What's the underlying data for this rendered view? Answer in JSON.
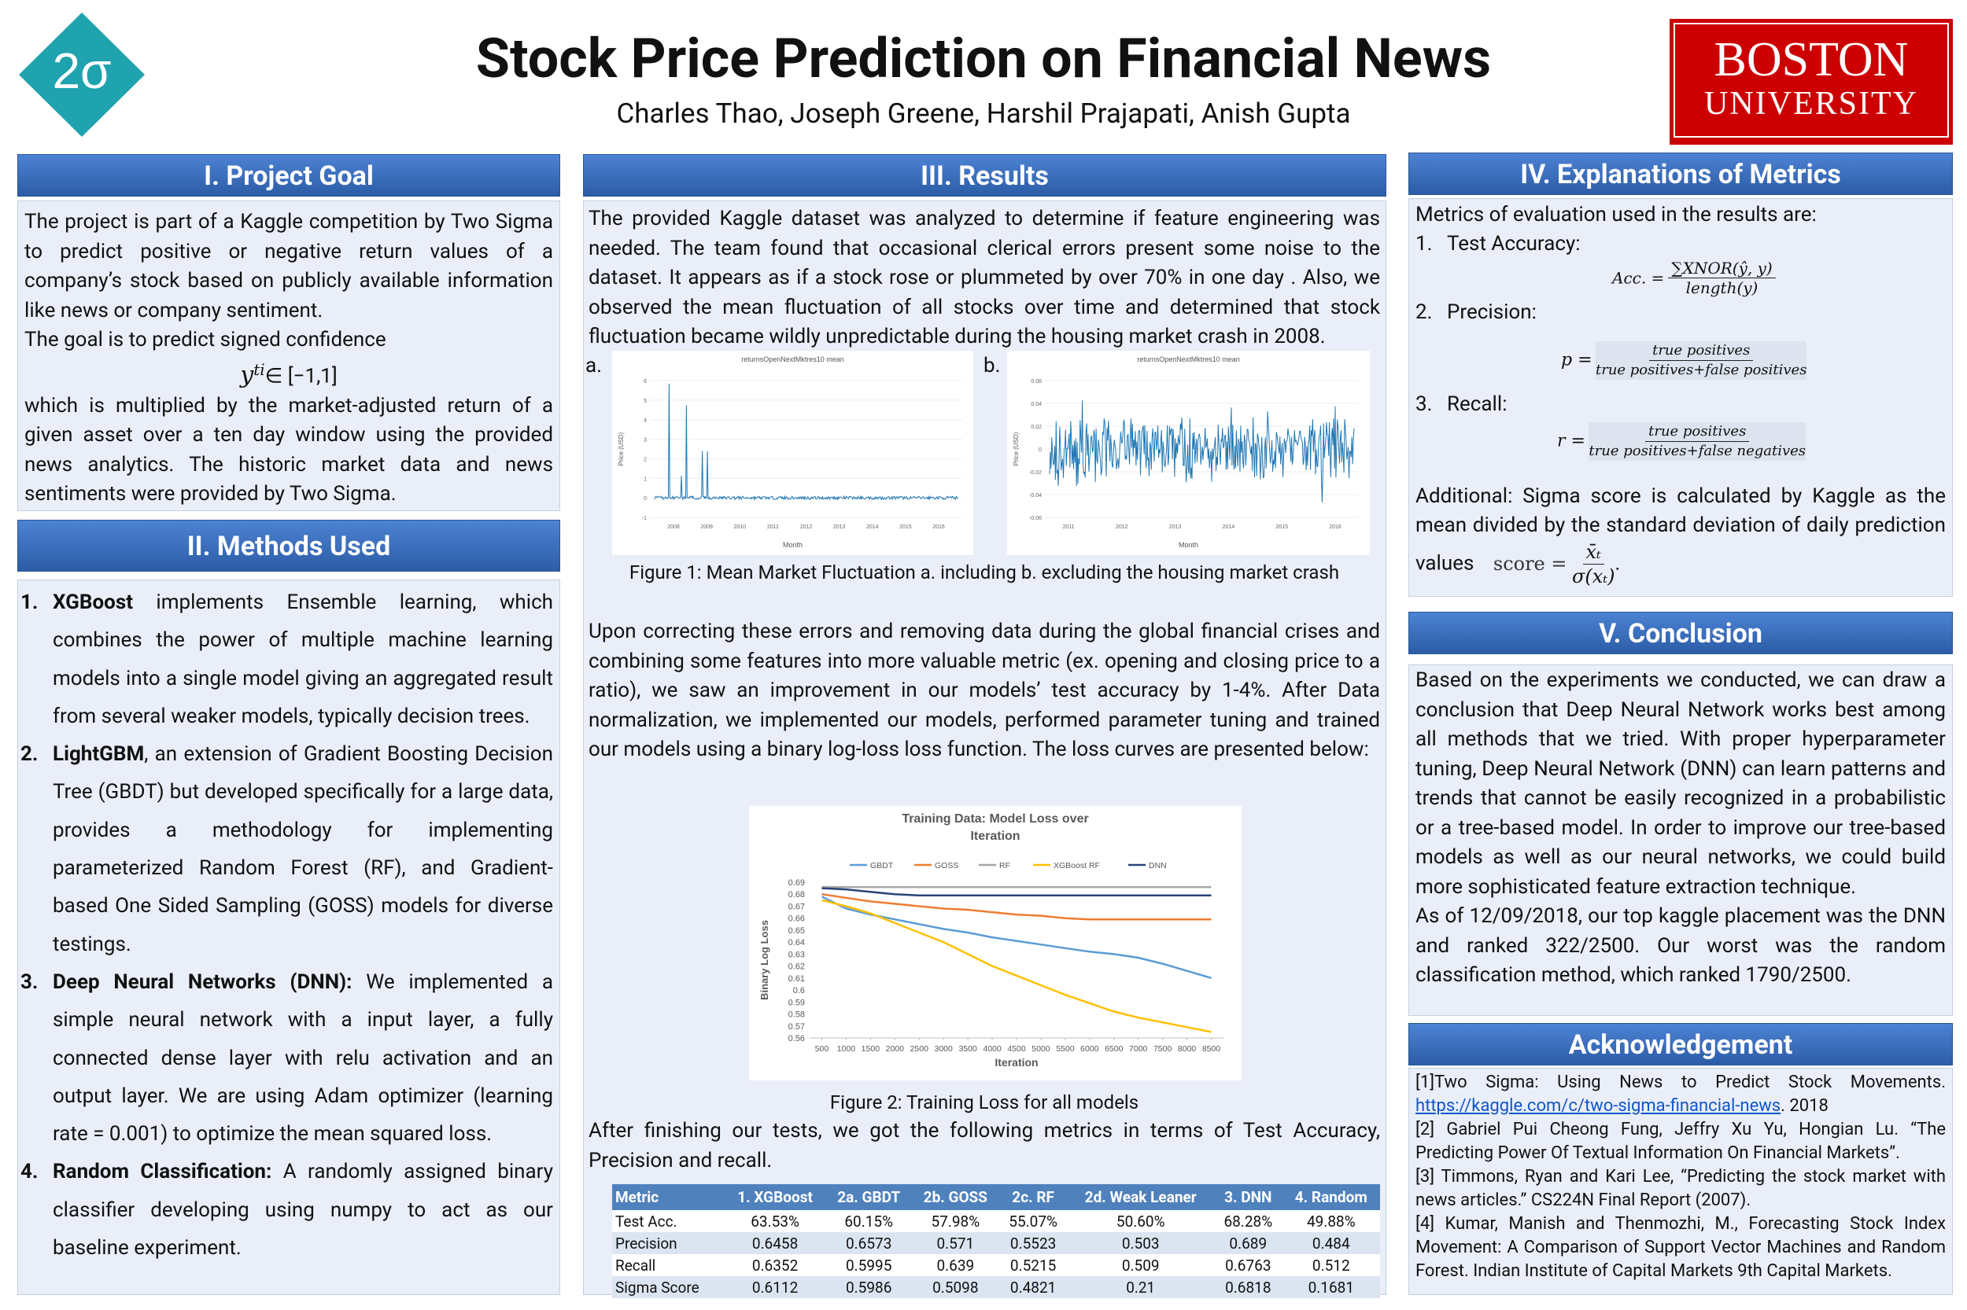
{
  "header": {
    "logo": "2σ",
    "title": "Stock Price Prediction on Financial News",
    "authors": "Charles Thao, Joseph Greene, Harshil Prajapati, Anish Gupta",
    "university_line1": "BOSTON",
    "university_line2": "UNIVERSITY"
  },
  "project_goal": {
    "heading": "I. Project Goal",
    "text1": "The project is part of a Kaggle competition by Two Sigma to predict positive or negative return values of a company’s stock based on publicly available information like news or company sentiment.",
    "text2": "The goal is to predict signed confidence",
    "formula_base": "y",
    "formula_sup": "ti",
    "formula_rest": "∈ [−1,1]",
    "text3": "which is multiplied by the market-adjusted return of a given asset over a ten day window using the provided news analytics. The historic market data and news sentiments were provided by Two Sigma."
  },
  "methods": {
    "heading": "II. Methods Used",
    "items": [
      {
        "number": "1.",
        "term": "XGBoost",
        "text": " implements Ensemble learning, which combines the power of multiple machine learning models into a single model giving an aggregated result from several weaker models, typically decision trees."
      },
      {
        "number": "2.",
        "term": "LightGBM",
        "text": ", an extension of Gradient Boosting Decision Tree (GBDT) but developed specifically for a large data, provides a methodology for implementing parameterized Random Forest (RF), and Gradient-based One Sided Sampling (GOSS) models for diverse testings."
      },
      {
        "number": "3.",
        "term": "Deep Neural Networks (DNN):",
        "text": " We implemented a simple neural network with a input layer, a fully connected dense layer with relu activation and an output layer. We are using Adam optimizer (learning rate = 0.001) to optimize the mean squared loss."
      },
      {
        "number": "4.",
        "term": "Random Classification:",
        "text": " A randomly assigned binary classifier developing using numpy to act as our baseline experiment."
      }
    ]
  },
  "results": {
    "heading": "III. Results",
    "text1": "The provided Kaggle dataset was analyzed to determine if feature engineering was needed. The team found that occasional clerical errors present some noise to the dataset. It appears as if a stock rose or plummeted by over 70% in one day . Also, we observed the mean fluctuation of all stocks over time and determined that stock fluctuation became wildly unpredictable during the housing market crash in 2008.",
    "figure1": [
      {
        "label": "a.",
        "title": "returnsOpenNextMktres10 mean",
        "xlabel": "Month",
        "ylabel": "Price (USD)",
        "xticks": [
          "2008",
          "2009",
          "2010",
          "2011",
          "2012",
          "2013",
          "2014",
          "2015",
          "2016"
        ],
        "yticks": [
          "-1",
          "0",
          "1",
          "2",
          "3",
          "4",
          "5",
          "6"
        ]
      },
      {
        "label": "b.",
        "title": "returnsOpenNextMktres10 mean",
        "xlabel": "Month",
        "ylabel": "Price (USD)",
        "xticks": [
          "2011",
          "2012",
          "2013",
          "2014",
          "2015",
          "2016"
        ],
        "yticks": [
          "-0.06",
          "-0.04",
          "-0.02",
          "0",
          "0.02",
          "0.04",
          "0.06"
        ]
      }
    ],
    "figure1_caption": "Figure 1: Mean Market Fluctuation a. including b. excluding the housing market crash",
    "text2": "Upon correcting these errors and removing data during the global financial crises and combining some features into more valuable metric (ex. opening and closing price to a ratio), we saw an improvement in our models’ test accuracy by 1-4%. After Data normalization, we implemented our models, performed parameter tuning and trained our models using a binary log-loss loss function. The loss curves are presented below:",
    "figure2_caption": "Figure 2: Training Loss for all models",
    "text3": "After finishing our tests, we got the following metrics in terms of Test Accuracy, Precision and recall.",
    "table": {
      "header": [
        "Metric",
        "1. XGBoost",
        "2a. GBDT",
        "2b. GOSS",
        "2c. RF",
        "2d. Weak Leaner",
        "3. DNN",
        "4. Random"
      ],
      "rows": [
        [
          "Test Acc.",
          "63.53%",
          "60.15%",
          "57.98%",
          "55.07%",
          "50.60%",
          "68.28%",
          "49.88%"
        ],
        [
          "Precision",
          "0.6458",
          "0.6573",
          "0.571",
          "0.5523",
          "0.503",
          "0.689",
          "0.484"
        ],
        [
          "Recall",
          "0.6352",
          "0.5995",
          "0.639",
          "0.5215",
          "0.509",
          "0.6763",
          "0.512"
        ],
        [
          "Sigma Score",
          "0.6112",
          "0.5986",
          "0.5098",
          "0.4821",
          "0.21",
          "0.6818",
          "0.1681"
        ]
      ]
    }
  },
  "metrics": {
    "heading": "IV. Explanations of Metrics",
    "intro": "Metrics of evaluation used in the results are:",
    "items": [
      {
        "number": "1.",
        "label": "Test Accuracy:",
        "lhs": "Acc. =",
        "num": "∑XNOR(ŷ, y)",
        "den": "length(y)"
      },
      {
        "number": "2.",
        "label": "Precision:",
        "lhs": "p =",
        "num": "true positives",
        "den": "true positives+false positives"
      },
      {
        "number": "3.",
        "label": "Recall:",
        "lhs": "r =",
        "num": "true positives",
        "den": "true positives+false negatives"
      }
    ],
    "additional": "Additional: Sigma score is  calculated by Kaggle as the mean divided by the standard deviation of daily prediction values",
    "score_lhs": "score =",
    "score_num": "x̄ₜ",
    "score_den": "σ(xₜ)",
    "score_end": "."
  },
  "conclusion": {
    "heading": "V. Conclusion",
    "text1": "Based on the experiments we conducted, we can draw a conclusion that Deep Neural Network works best among all methods that we tried. With proper hyperparameter tuning, Deep Neural Network (DNN) can learn patterns and trends that cannot be easily recognized in a probabilistic or a tree-based model. In order to improve our tree-based models as well as our neural networks, we could build  more sophisticated feature extraction technique.",
    "text2": "As of 12/09/2018, our top kaggle placement was the DNN and ranked 322/2500. Our worst was the random classification method, which ranked 1790/2500."
  },
  "acknowledgement": {
    "heading": "Acknowledgement",
    "ref1_prefix": "[1]Two Sigma: Using News to Predict Stock Movements. ",
    "ref1_link": "https://kaggle.com/c/two-sigma-financial-news",
    "ref1_suffix": ". 2018",
    "refs": [
      "[2] Gabriel Pui Cheong Fung, Jeffry Xu Yu, Hongian Lu. “The Predicting Power Of Textual Information On Financial Markets”.",
      "[3] Timmons, Ryan and Kari Lee, “Predicting the stock market with news articles.” CS224N Final Report (2007).",
      "[4] Kumar, Manish and Thenmozhi, M., Forecasting Stock Index Movement: A Comparison of Support Vector Machines and Random Forest. Indian Institute of Capital Markets 9th Capital Markets."
    ]
  },
  "chart_data": {
    "type": "line",
    "title": "Training Data: Model Loss over Iteration",
    "xlabel": "Iteration",
    "ylabel": "Binary Log Loss",
    "x": [
      500,
      1000,
      1500,
      2000,
      2500,
      3000,
      3500,
      4000,
      4500,
      5000,
      5500,
      6000,
      6500,
      7000,
      7500,
      8000,
      8500
    ],
    "xlim": [
      250,
      8750
    ],
    "xticks": [
      500,
      1000,
      1500,
      2000,
      2500,
      3000,
      3500,
      4000,
      4500,
      5000,
      5500,
      6000,
      6500,
      7000,
      7500,
      8000,
      8500
    ],
    "ylim": [
      0.56,
      0.69
    ],
    "yticks": [
      0.56,
      0.57,
      0.58,
      0.59,
      0.6,
      0.61,
      0.62,
      0.63,
      0.64,
      0.65,
      0.66,
      0.67,
      0.68,
      0.69
    ],
    "grid": false,
    "legend": "top",
    "series": [
      {
        "name": "GBDT",
        "color": "#5b9bd5",
        "values": [
          0.678,
          0.668,
          0.663,
          0.659,
          0.655,
          0.651,
          0.648,
          0.644,
          0.641,
          0.638,
          0.635,
          0.632,
          0.63,
          0.627,
          0.622,
          0.616,
          0.61
        ]
      },
      {
        "name": "GOSS",
        "color": "#ed7d31",
        "values": [
          0.68,
          0.677,
          0.674,
          0.672,
          0.67,
          0.668,
          0.667,
          0.665,
          0.663,
          0.662,
          0.66,
          0.659,
          0.659,
          0.659,
          0.659,
          0.659,
          0.659
        ]
      },
      {
        "name": "RF",
        "color": "#a5a5a5",
        "values": [
          0.686,
          0.686,
          0.686,
          0.686,
          0.686,
          0.686,
          0.686,
          0.686,
          0.686,
          0.686,
          0.686,
          0.686,
          0.686,
          0.686,
          0.686,
          0.686,
          0.686
        ]
      },
      {
        "name": "XGBoost RF",
        "color": "#ffc000",
        "values": [
          0.675,
          0.67,
          0.664,
          0.656,
          0.648,
          0.64,
          0.63,
          0.62,
          0.612,
          0.604,
          0.596,
          0.589,
          0.582,
          0.577,
          0.573,
          0.569,
          0.565
        ]
      },
      {
        "name": "DNN",
        "color": "#264478",
        "values": [
          0.685,
          0.684,
          0.682,
          0.68,
          0.679,
          0.679,
          0.679,
          0.679,
          0.679,
          0.679,
          0.679,
          0.679,
          0.679,
          0.679,
          0.679,
          0.679,
          0.679
        ]
      }
    ]
  }
}
